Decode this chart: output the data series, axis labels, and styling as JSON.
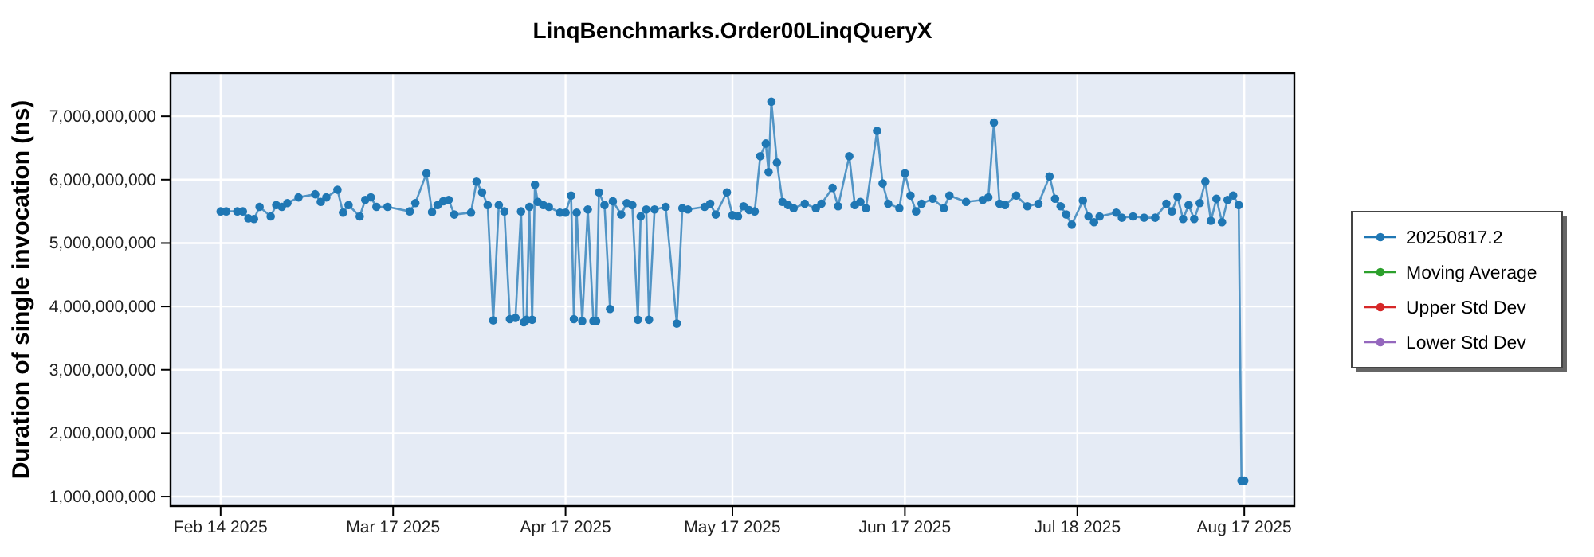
{
  "chart_data": {
    "type": "line",
    "title": "LinqBenchmarks.Order00LinqQueryX",
    "ylabel": "Duration of single invocation (ns)",
    "xlim": [
      "2025-02-05",
      "2025-08-26"
    ],
    "xticks": [
      {
        "value": "2025-02-14",
        "label": "Feb 14 2025"
      },
      {
        "value": "2025-03-17",
        "label": "Mar 17 2025"
      },
      {
        "value": "2025-04-17",
        "label": "Apr 17 2025"
      },
      {
        "value": "2025-05-17",
        "label": "May 17 2025"
      },
      {
        "value": "2025-06-17",
        "label": "Jun 17 2025"
      },
      {
        "value": "2025-07-18",
        "label": "Jul 18 2025"
      },
      {
        "value": "2025-08-17",
        "label": "Aug 17 2025"
      }
    ],
    "ylim": [
      850000000,
      7680000000
    ],
    "yticks": [
      {
        "value": 1000000000,
        "label": "1,000,000,000"
      },
      {
        "value": 2000000000,
        "label": "2,000,000,000"
      },
      {
        "value": 3000000000,
        "label": "3,000,000,000"
      },
      {
        "value": 4000000000,
        "label": "4,000,000,000"
      },
      {
        "value": 5000000000,
        "label": "5,000,000,000"
      },
      {
        "value": 6000000000,
        "label": "6,000,000,000"
      },
      {
        "value": 7000000000,
        "label": "7,000,000,000"
      }
    ],
    "grid": true,
    "legend": "right",
    "marker": "circle",
    "line_style": "solid",
    "series": [
      {
        "name": "20250817.2",
        "color": "#1f77b4",
        "x": [
          "2025-02-14",
          "2025-02-15",
          "2025-02-17",
          "2025-02-18",
          "2025-02-19",
          "2025-02-20",
          "2025-02-21",
          "2025-02-23",
          "2025-02-24",
          "2025-02-25",
          "2025-02-26",
          "2025-02-28",
          "2025-03-03",
          "2025-03-04",
          "2025-03-05",
          "2025-03-07",
          "2025-03-08",
          "2025-03-09",
          "2025-03-11",
          "2025-03-12",
          "2025-03-13",
          "2025-03-14",
          "2025-03-16",
          "2025-03-20",
          "2025-03-21",
          "2025-03-23",
          "2025-03-24",
          "2025-03-25",
          "2025-03-26",
          "2025-03-27",
          "2025-03-28",
          "2025-03-31",
          "2025-04-01",
          "2025-04-02",
          "2025-04-03",
          "2025-04-04",
          "2025-04-05",
          "2025-04-06",
          "2025-04-07",
          "2025-04-08",
          "2025-04-09",
          "2025-04-09T12:00",
          "2025-04-10",
          "2025-04-10T12:00",
          "2025-04-11",
          "2025-04-11T12:00",
          "2025-04-12",
          "2025-04-13",
          "2025-04-14",
          "2025-04-16",
          "2025-04-17",
          "2025-04-18",
          "2025-04-18T12:00",
          "2025-04-19",
          "2025-04-20",
          "2025-04-21",
          "2025-04-22",
          "2025-04-22T12:00",
          "2025-04-23",
          "2025-04-24",
          "2025-04-25",
          "2025-04-25T12:00",
          "2025-04-27",
          "2025-04-28",
          "2025-04-29",
          "2025-04-30",
          "2025-04-30T12:00",
          "2025-05-01T12:00",
          "2025-05-02",
          "2025-05-03",
          "2025-05-05",
          "2025-05-07",
          "2025-05-08",
          "2025-05-09",
          "2025-05-12",
          "2025-05-13",
          "2025-05-14",
          "2025-05-16",
          "2025-05-17",
          "2025-05-18",
          "2025-05-19",
          "2025-05-20",
          "2025-05-21",
          "2025-05-22",
          "2025-05-23",
          "2025-05-23T12:00",
          "2025-05-24",
          "2025-05-25",
          "2025-05-26",
          "2025-05-27",
          "2025-05-28",
          "2025-05-30",
          "2025-06-01",
          "2025-06-02",
          "2025-06-04",
          "2025-06-05",
          "2025-06-07",
          "2025-06-08",
          "2025-06-09",
          "2025-06-10",
          "2025-06-12",
          "2025-06-13",
          "2025-06-14",
          "2025-06-16",
          "2025-06-17",
          "2025-06-18",
          "2025-06-19",
          "2025-06-20",
          "2025-06-22",
          "2025-06-24",
          "2025-06-25",
          "2025-06-28",
          "2025-07-01",
          "2025-07-02",
          "2025-07-03",
          "2025-07-04",
          "2025-07-05",
          "2025-07-07",
          "2025-07-09",
          "2025-07-11",
          "2025-07-13",
          "2025-07-14",
          "2025-07-15",
          "2025-07-16",
          "2025-07-17",
          "2025-07-19",
          "2025-07-20",
          "2025-07-21",
          "2025-07-22",
          "2025-07-25",
          "2025-07-26",
          "2025-07-28",
          "2025-07-30",
          "2025-08-01",
          "2025-08-03",
          "2025-08-04",
          "2025-08-05",
          "2025-08-06",
          "2025-08-07",
          "2025-08-08",
          "2025-08-09",
          "2025-08-10",
          "2025-08-11",
          "2025-08-12",
          "2025-08-13",
          "2025-08-14",
          "2025-08-15",
          "2025-08-16",
          "2025-08-16T12:00",
          "2025-08-17"
        ],
        "values": [
          5500000000,
          5500000000,
          5500000000,
          5500000000,
          5390000000,
          5380000000,
          5570000000,
          5420000000,
          5600000000,
          5570000000,
          5630000000,
          5720000000,
          5770000000,
          5650000000,
          5720000000,
          5840000000,
          5480000000,
          5600000000,
          5420000000,
          5680000000,
          5720000000,
          5570000000,
          5570000000,
          5500000000,
          5630000000,
          6100000000,
          5490000000,
          5600000000,
          5660000000,
          5680000000,
          5450000000,
          5480000000,
          5970000000,
          5800000000,
          5600000000,
          3780000000,
          5600000000,
          5500000000,
          3800000000,
          3820000000,
          5500000000,
          3750000000,
          3790000000,
          5570000000,
          3790000000,
          5920000000,
          5650000000,
          5600000000,
          5570000000,
          5480000000,
          5480000000,
          5750000000,
          3800000000,
          5480000000,
          3770000000,
          5530000000,
          3770000000,
          3770000000,
          5800000000,
          5600000000,
          3960000000,
          5660000000,
          5450000000,
          5630000000,
          5600000000,
          3790000000,
          5420000000,
          5530000000,
          3790000000,
          5530000000,
          5570000000,
          3730000000,
          5550000000,
          5530000000,
          5570000000,
          5620000000,
          5450000000,
          5800000000,
          5440000000,
          5420000000,
          5580000000,
          5520000000,
          5500000000,
          6370000000,
          6570000000,
          6120000000,
          7230000000,
          6270000000,
          5650000000,
          5600000000,
          5550000000,
          5620000000,
          5550000000,
          5620000000,
          5870000000,
          5580000000,
          6370000000,
          5600000000,
          5650000000,
          5550000000,
          6770000000,
          5940000000,
          5620000000,
          5550000000,
          6100000000,
          5750000000,
          5500000000,
          5620000000,
          5700000000,
          5550000000,
          5750000000,
          5650000000,
          5680000000,
          5720000000,
          6900000000,
          5620000000,
          5600000000,
          5750000000,
          5580000000,
          5620000000,
          6050000000,
          5700000000,
          5580000000,
          5450000000,
          5290000000,
          5670000000,
          5420000000,
          5330000000,
          5420000000,
          5480000000,
          5400000000,
          5420000000,
          5400000000,
          5400000000,
          5620000000,
          5500000000,
          5730000000,
          5380000000,
          5600000000,
          5380000000,
          5630000000,
          5970000000,
          5350000000,
          5700000000,
          5330000000,
          5680000000,
          5750000000,
          5600000000,
          1250000000,
          1250000000
        ]
      },
      {
        "name": "Moving Average",
        "color": "#2ca02c"
      },
      {
        "name": "Upper Std Dev",
        "color": "#d62728"
      },
      {
        "name": "Lower Std Dev",
        "color": "#9467bd"
      }
    ]
  }
}
